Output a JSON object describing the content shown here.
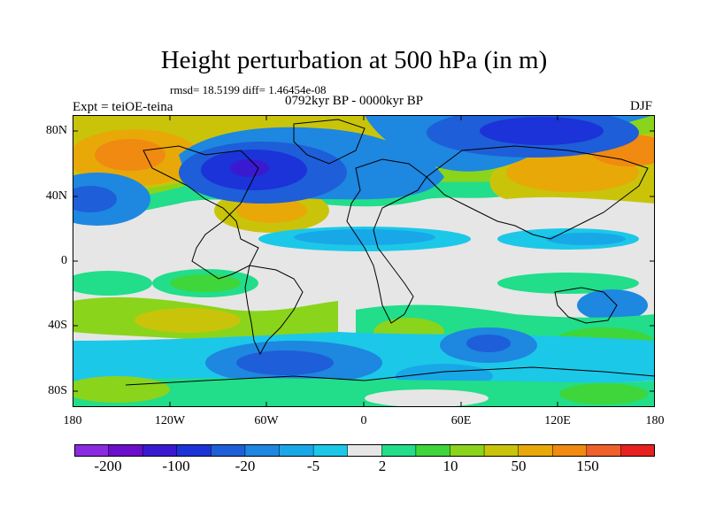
{
  "header": {
    "title": "Height perturbation at 500 hPa (in m)",
    "stats": "rmsd= 18.5199 diff= 1.46454e-08",
    "period": "0792kyr BP - 0000kyr BP",
    "experiment": "Expt = teiOE-teina",
    "season": "DJF"
  },
  "axes": {
    "lat_ticks": [
      "80N",
      "40N",
      "0",
      "40S",
      "80S"
    ],
    "lon_ticks": [
      "180",
      "120W",
      "60W",
      "0",
      "60E",
      "120E",
      "180"
    ]
  },
  "colorbar": {
    "labels": [
      "-200",
      "-100",
      "-20",
      "-5",
      "2",
      "10",
      "50",
      "150"
    ],
    "colors": [
      "#8a2be2",
      "#6a0dcd",
      "#3a1ad0",
      "#1b33d8",
      "#1e5ed8",
      "#1e87e0",
      "#18a8e8",
      "#1cc8e8",
      "#e6e6e6",
      "#22dd8a",
      "#3ed63a",
      "#8ad41c",
      "#c9c40a",
      "#e8a808",
      "#f08a10",
      "#f0602a",
      "#e82020"
    ]
  },
  "map": {
    "projection": "cylindrical-equidistant",
    "lon_range": [
      -180,
      180
    ],
    "lat_range": [
      -90,
      90
    ],
    "field": "height perturbation (m)"
  }
}
